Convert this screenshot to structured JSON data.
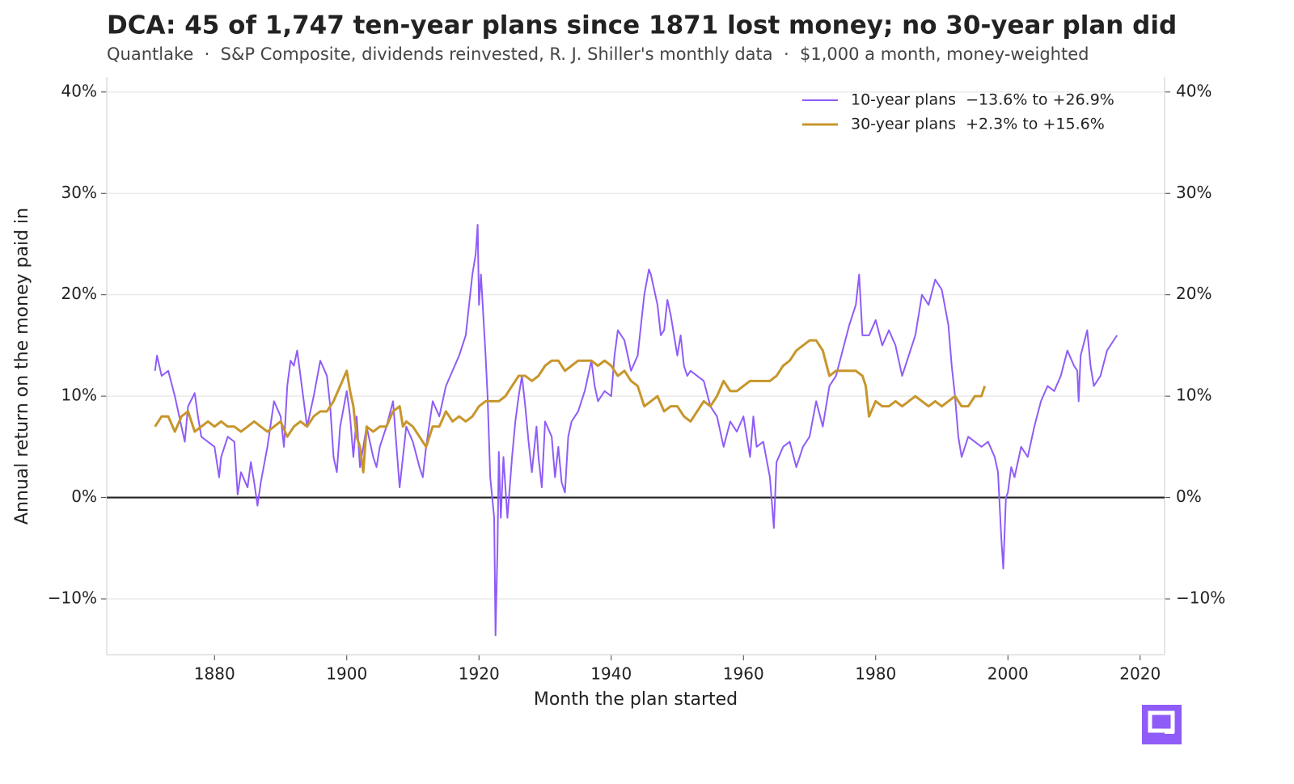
{
  "chart_data": {
    "type": "line",
    "title": "DCA: 45 of 1,747 ten-year plans since 1871 lost money; no 30-year plan did",
    "subtitle": "Quantlake  ·  S&P Composite, dividends reinvested, R. J. Shiller's monthly data  ·  $1,000 a month, money-weighted",
    "x_label": "Month the plan started",
    "y_label": "Annual return on the money paid in",
    "xlim": [
      1863.7,
      2023.7
    ],
    "xticks": [
      1880,
      1900,
      1920,
      1940,
      1960,
      1980,
      2000,
      2020
    ],
    "ylim": [
      -15.5,
      41.5
    ],
    "yticks": [
      {
        "value": -10,
        "label": "−10%"
      },
      {
        "value": 0,
        "label": "0%"
      },
      {
        "value": 10,
        "label": "10%"
      },
      {
        "value": 20,
        "label": "20%"
      },
      {
        "value": 30,
        "label": "30%"
      },
      {
        "value": 40,
        "label": "40%"
      }
    ],
    "grid": true,
    "hline": 0,
    "legend": "upper right",
    "series": [
      {
        "name": "10-year plans  −13.6% to +26.9%",
        "color": "#8f5cf7",
        "width": 2,
        "x": [
          1871,
          1871.3,
          1872,
          1873,
          1874,
          1875,
          1875.5,
          1876,
          1877,
          1877.5,
          1878,
          1879,
          1880,
          1880.7,
          1881,
          1882,
          1883,
          1883.5,
          1884,
          1885,
          1885.5,
          1886,
          1886.5,
          1887,
          1888,
          1889,
          1890,
          1890.5,
          1891,
          1891.5,
          1892,
          1892.5,
          1893,
          1894,
          1895,
          1896,
          1897,
          1897.5,
          1898,
          1898.5,
          1899,
          1900,
          1900.5,
          1901,
          1901.5,
          1902,
          1903,
          1904,
          1904.5,
          1905,
          1906,
          1907,
          1908,
          1909,
          1910,
          1911,
          1911.5,
          1912,
          1913,
          1914,
          1915,
          1916,
          1917,
          1918,
          1918.5,
          1919,
          1919.5,
          1919.8,
          1920,
          1920.3,
          1921,
          1921.3,
          1921.7,
          1922.3,
          1922.5,
          1922.8,
          1923,
          1923.3,
          1923.7,
          1924.3,
          1925,
          1925.5,
          1926,
          1926.5,
          1927,
          1927.5,
          1928,
          1928.7,
          1929,
          1929.5,
          1930,
          1931,
          1931.5,
          1932,
          1932.5,
          1933,
          1933.5,
          1934,
          1935,
          1936,
          1937,
          1937.5,
          1938,
          1939,
          1940,
          1940.5,
          1941,
          1942,
          1943,
          1944,
          1945,
          1945.7,
          1946,
          1947,
          1947.5,
          1948,
          1948.5,
          1949,
          1950,
          1950.5,
          1951,
          1951.5,
          1952,
          1953,
          1954,
          1955,
          1956,
          1957,
          1958,
          1959,
          1960,
          1961,
          1961.5,
          1962,
          1963,
          1964,
          1964.6,
          1965,
          1966,
          1967,
          1968,
          1969,
          1970,
          1971,
          1972,
          1973,
          1974,
          1975,
          1976,
          1977,
          1977.5,
          1978,
          1979,
          1980,
          1981,
          1982,
          1983,
          1984,
          1985,
          1986,
          1987,
          1988,
          1989,
          1990,
          1991,
          1991.5,
          1992,
          1992.5,
          1993,
          1994,
          1995,
          1996,
          1997,
          1998,
          1998.5,
          1999,
          1999.3,
          1999.7,
          2000,
          2000.5,
          2001,
          2002,
          2003,
          2003.5,
          2004,
          2005,
          2006,
          2007,
          2008,
          2009,
          2010,
          2010.5,
          2010.7,
          2011,
          2012,
          2012.5,
          2013,
          2014,
          2015,
          2016,
          2016.5
        ],
        "values": [
          12.5,
          14,
          12,
          12.5,
          10,
          7,
          5.5,
          9,
          10.3,
          8,
          6,
          5.5,
          5,
          2,
          4,
          6,
          5.5,
          0.3,
          2.5,
          1,
          3.5,
          1.5,
          -0.8,
          1.5,
          5,
          9.5,
          8,
          5,
          11,
          13.5,
          13,
          14.5,
          12,
          7,
          10,
          13.5,
          12,
          9,
          4,
          2.5,
          7,
          10.5,
          8,
          4,
          8,
          3,
          7,
          4,
          3,
          5,
          7,
          9.5,
          1,
          7,
          5.5,
          3,
          2,
          5,
          9.5,
          8,
          11,
          12.5,
          14,
          16,
          19,
          22,
          24,
          26.9,
          19,
          22,
          14,
          10,
          2,
          -2,
          -13.6,
          -5,
          4.5,
          -2,
          4,
          -2,
          4,
          7.5,
          10,
          12,
          9,
          5.5,
          2.5,
          7,
          4,
          1,
          7.5,
          6,
          2,
          5,
          1.5,
          0.5,
          6,
          7.5,
          8.5,
          10.5,
          13.5,
          11,
          9.5,
          10.5,
          10,
          14,
          16.5,
          15.5,
          12.5,
          14,
          20,
          22.5,
          22,
          19,
          16,
          16.5,
          19.5,
          18,
          14,
          16,
          13,
          12,
          12.5,
          12,
          11.5,
          9,
          8,
          5,
          7.5,
          6.5,
          8,
          4,
          8,
          5,
          5.5,
          2,
          -3,
          3.5,
          5,
          5.5,
          3,
          5,
          6,
          9.5,
          7,
          11,
          12,
          14.5,
          17,
          19,
          22,
          16,
          16,
          17.5,
          15,
          16.5,
          15,
          12,
          14,
          16,
          20,
          19,
          21.5,
          20.5,
          17,
          13,
          10,
          6,
          4,
          6,
          5.5,
          5,
          5.5,
          4,
          2.5,
          -4,
          -7,
          0,
          0.5,
          3,
          2,
          5,
          4,
          5.5,
          7,
          9.5,
          11,
          10.5,
          12,
          14.5,
          13,
          12.5,
          9.5,
          14,
          16.5,
          13,
          11,
          12,
          14.5,
          15.5,
          16
        ]
      },
      {
        "name": "30-year plans  +2.3% to +15.6%",
        "color": "#c7962c",
        "width": 3,
        "x": [
          1871,
          1872,
          1873,
          1874,
          1875,
          1876,
          1877,
          1878,
          1879,
          1880,
          1881,
          1882,
          1883,
          1884,
          1885,
          1886,
          1887,
          1888,
          1889,
          1890,
          1891,
          1892,
          1893,
          1894,
          1895,
          1896,
          1897,
          1898,
          1899,
          1900,
          1900.5,
          1901,
          1901.5,
          1902,
          1902.5,
          1903,
          1904,
          1905,
          1906,
          1907,
          1908,
          1908.5,
          1909,
          1910,
          1911,
          1912,
          1913,
          1914,
          1915,
          1916,
          1917,
          1918,
          1919,
          1920,
          1921,
          1922,
          1923,
          1924,
          1925,
          1926,
          1927,
          1928,
          1929,
          1930,
          1931,
          1932,
          1933,
          1934,
          1935,
          1936,
          1937,
          1938,
          1939,
          1940,
          1941,
          1942,
          1943,
          1944,
          1945,
          1946,
          1947,
          1948,
          1949,
          1950,
          1951,
          1952,
          1953,
          1954,
          1955,
          1956,
          1957,
          1958,
          1959,
          1960,
          1961,
          1962,
          1963,
          1964,
          1965,
          1966,
          1967,
          1968,
          1969,
          1970,
          1971,
          1972,
          1973,
          1974,
          1975,
          1976,
          1977,
          1978,
          1978.5,
          1979,
          1980,
          1981,
          1982,
          1983,
          1984,
          1985,
          1986,
          1987,
          1988,
          1989,
          1990,
          1991,
          1992,
          1993,
          1994,
          1995,
          1996,
          1996.5
        ],
        "values": [
          7,
          8,
          8,
          6.5,
          8,
          8.5,
          6.5,
          7,
          7.5,
          7,
          7.5,
          7,
          7,
          6.5,
          7,
          7.5,
          7,
          6.5,
          7,
          7.5,
          6,
          7,
          7.5,
          7,
          8,
          8.5,
          8.5,
          9.5,
          11,
          12.5,
          10.5,
          9,
          6,
          5,
          2.5,
          7,
          6.5,
          7,
          7,
          8.5,
          9,
          7,
          7.5,
          7,
          6,
          5,
          7,
          7,
          8.5,
          7.5,
          8,
          7.5,
          8,
          9,
          9.5,
          9.5,
          9.5,
          10,
          11,
          12,
          12,
          11.5,
          12,
          13,
          13.5,
          13.5,
          12.5,
          13,
          13.5,
          13.5,
          13.5,
          13,
          13.5,
          13,
          12,
          12.5,
          11.5,
          11,
          9,
          9.5,
          10,
          8.5,
          9,
          9,
          8,
          7.5,
          8.5,
          9.5,
          9,
          10,
          11.5,
          10.5,
          10.5,
          11,
          11.5,
          11.5,
          11.5,
          11.5,
          12,
          13,
          13.5,
          14.5,
          15,
          15.5,
          15.5,
          14.5,
          12,
          12.5,
          12.5,
          12.5,
          12.5,
          12,
          11,
          8,
          9.5,
          9,
          9,
          9.5,
          9,
          9.5,
          10,
          9.5,
          9,
          9.5,
          9,
          9.5,
          10,
          9,
          9,
          10,
          10,
          11
        ]
      }
    ]
  }
}
